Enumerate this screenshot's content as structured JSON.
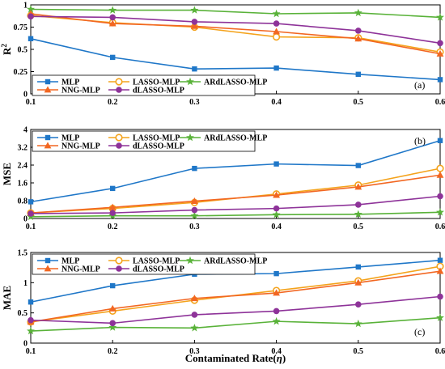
{
  "chart_data": [
    {
      "type": "line",
      "ylabel": "R",
      "ylabel_sup": "2",
      "annotation": "(a)",
      "x": [
        0.1,
        0.2,
        0.3,
        0.4,
        0.5,
        0.6
      ],
      "xticks": [
        "0.1",
        "0.2",
        "0.3",
        "0.4",
        "0.5",
        "0.6"
      ],
      "ylim": [
        0,
        1
      ],
      "yticks": [
        "0",
        "0.25",
        "0.5",
        "0.75",
        "1"
      ],
      "ytick_values": [
        0,
        0.25,
        0.5,
        0.75,
        1
      ],
      "legend_position": "bottom-left",
      "series": [
        {
          "name": "MLP",
          "values": [
            0.62,
            0.41,
            0.28,
            0.29,
            0.22,
            0.16
          ],
          "color": "#1f77c8",
          "marker": "square"
        },
        {
          "name": "LASSO-MLP",
          "values": [
            0.88,
            0.8,
            0.75,
            0.64,
            0.63,
            0.47
          ],
          "color": "#f4a31c",
          "marker": "circle-open"
        },
        {
          "name": "ARdLASSO-MLP",
          "values": [
            0.95,
            0.94,
            0.94,
            0.9,
            0.91,
            0.86
          ],
          "color": "#59b239",
          "marker": "star"
        },
        {
          "name": "NNG-MLP",
          "values": [
            0.9,
            0.79,
            0.76,
            0.7,
            0.62,
            0.45
          ],
          "color": "#f26722",
          "marker": "triangle"
        },
        {
          "name": "dLASSO-MLP",
          "values": [
            0.87,
            0.86,
            0.81,
            0.79,
            0.71,
            0.57
          ],
          "color": "#8e3399",
          "marker": "circle"
        }
      ]
    },
    {
      "type": "line",
      "ylabel": "MSE",
      "annotation": "(b)",
      "x": [
        0.1,
        0.2,
        0.3,
        0.4,
        0.5,
        0.6
      ],
      "xticks": [
        "0.1",
        "0.2",
        "0.3",
        "0.4",
        "0.5",
        "0.6"
      ],
      "ylim": [
        0,
        4
      ],
      "yticks": [
        "0",
        "0.8",
        "1.6",
        "2.4",
        "3.2",
        "4"
      ],
      "ytick_values": [
        0,
        0.8,
        1.6,
        2.4,
        3.2,
        4
      ],
      "legend_position": "top-left",
      "series": [
        {
          "name": "MLP",
          "values": [
            0.75,
            1.35,
            2.25,
            2.45,
            2.38,
            3.5
          ],
          "color": "#1f77c8",
          "marker": "square"
        },
        {
          "name": "LASSO-MLP",
          "values": [
            0.25,
            0.45,
            0.72,
            1.1,
            1.5,
            2.25
          ],
          "color": "#f4a31c",
          "marker": "circle-open"
        },
        {
          "name": "ARdLASSO-MLP",
          "values": [
            0.08,
            0.12,
            0.12,
            0.17,
            0.19,
            0.28
          ],
          "color": "#59b239",
          "marker": "star"
        },
        {
          "name": "NNG-MLP",
          "values": [
            0.25,
            0.5,
            0.78,
            1.05,
            1.42,
            1.95
          ],
          "color": "#f26722",
          "marker": "triangle"
        },
        {
          "name": "dLASSO-MLP",
          "values": [
            0.22,
            0.25,
            0.38,
            0.45,
            0.62,
            1.0
          ],
          "color": "#8e3399",
          "marker": "circle"
        }
      ]
    },
    {
      "type": "line",
      "ylabel": "MAE",
      "annotation": "(c)",
      "xlabel": "Contaminated Rate(",
      "xlabel_sym": "η",
      "xlabel_end": ")",
      "x": [
        0.1,
        0.2,
        0.3,
        0.4,
        0.5,
        0.6
      ],
      "xticks": [
        "0.1",
        "0.2",
        "0.3",
        "0.4",
        "0.5",
        "0.6"
      ],
      "ylim": [
        0,
        1.5
      ],
      "yticks": [
        "0",
        "0.5",
        "1",
        "1.5"
      ],
      "ytick_values": [
        0,
        0.5,
        1,
        1.5
      ],
      "legend_position": "top-left",
      "series": [
        {
          "name": "MLP",
          "values": [
            0.68,
            0.95,
            1.14,
            1.15,
            1.26,
            1.37
          ],
          "color": "#1f77c8",
          "marker": "square"
        },
        {
          "name": "LASSO-MLP",
          "values": [
            0.35,
            0.53,
            0.71,
            0.87,
            1.03,
            1.27
          ],
          "color": "#f4a31c",
          "marker": "circle-open"
        },
        {
          "name": "ARdLASSO-MLP",
          "values": [
            0.2,
            0.26,
            0.25,
            0.36,
            0.32,
            0.42
          ],
          "color": "#59b239",
          "marker": "star"
        },
        {
          "name": "NNG-MLP",
          "values": [
            0.35,
            0.57,
            0.74,
            0.83,
            1.0,
            1.19
          ],
          "color": "#f26722",
          "marker": "triangle"
        },
        {
          "name": "dLASSO-MLP",
          "values": [
            0.38,
            0.33,
            0.47,
            0.53,
            0.64,
            0.77
          ],
          "color": "#8e3399",
          "marker": "circle"
        }
      ]
    }
  ]
}
